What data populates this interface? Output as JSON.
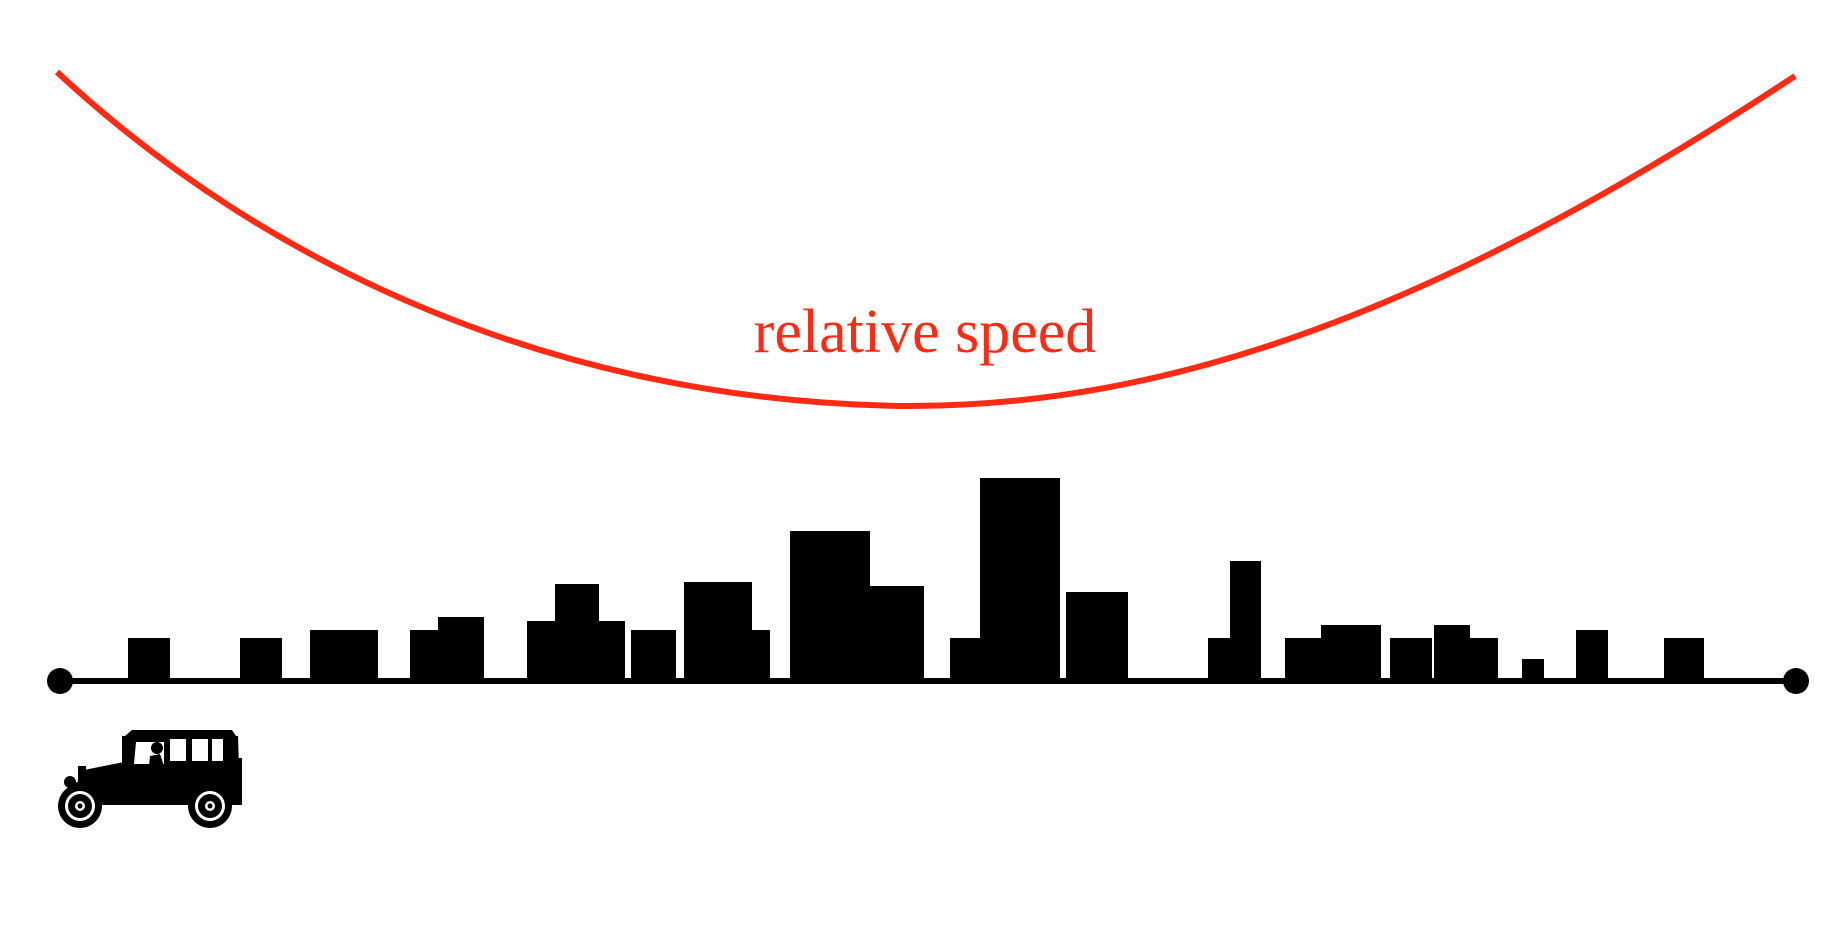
{
  "diagram": {
    "curve_label": "relative speed",
    "colors": {
      "curve": "#ff2a14",
      "skyline": "#000000",
      "road": "#000000",
      "background": "#ffffff"
    },
    "elements": {
      "curve": "speed-curve",
      "road": "road-line",
      "start_marker": "road-start-dot",
      "end_marker": "road-end-dot",
      "skyline": "city-skyline",
      "car": "vintage-car-icon"
    }
  }
}
